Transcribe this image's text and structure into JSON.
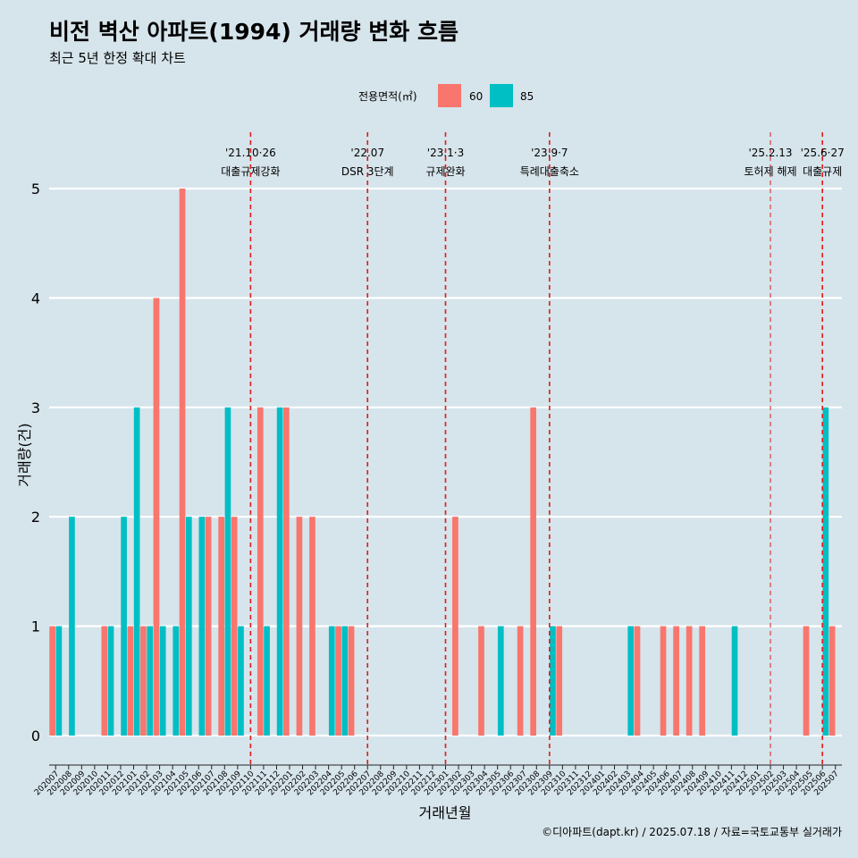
{
  "chart_data": {
    "type": "bar",
    "title": "비전 벽산 아파트(1994) 거래량 변화 흐름",
    "subtitle": "최근 5년 한정 확대 차트",
    "xlabel": "거래년월",
    "ylabel": "거래량(건)",
    "ylim": [
      0,
      5
    ],
    "yticks": [
      "0",
      "1",
      "2",
      "3",
      "4",
      "5"
    ],
    "legend": {
      "title": "전용면적(㎡)",
      "placement": "top"
    },
    "categories": [
      "202007",
      "202008",
      "202009",
      "202010",
      "202011",
      "202012",
      "202101",
      "202102",
      "202103",
      "202104",
      "202105",
      "202106",
      "202107",
      "202108",
      "202109",
      "202110",
      "202111",
      "202112",
      "202201",
      "202202",
      "202203",
      "202204",
      "202205",
      "202206",
      "202207",
      "202208",
      "202209",
      "202210",
      "202211",
      "202212",
      "202301",
      "202302",
      "202303",
      "202304",
      "202305",
      "202306",
      "202307",
      "202308",
      "202309",
      "202310",
      "202311",
      "202312",
      "202401",
      "202402",
      "202403",
      "202404",
      "202405",
      "202406",
      "202407",
      "202408",
      "202409",
      "202410",
      "202411",
      "202412",
      "202501",
      "202502",
      "202503",
      "202504",
      "202505",
      "202506",
      "202507"
    ],
    "series": [
      {
        "name": "60",
        "color": "#f8766d",
        "values": [
          1,
          0,
          0,
          0,
          1,
          0,
          1,
          1,
          4,
          0,
          5,
          0,
          2,
          2,
          2,
          0,
          3,
          0,
          3,
          2,
          2,
          0,
          1,
          1,
          0,
          0,
          0,
          0,
          0,
          0,
          0,
          2,
          0,
          1,
          0,
          0,
          1,
          3,
          0,
          1,
          0,
          0,
          0,
          0,
          0,
          1,
          0,
          1,
          1,
          1,
          1,
          0,
          0,
          0,
          0,
          0,
          0,
          0,
          1,
          0,
          1
        ]
      },
      {
        "name": "85",
        "color": "#00bfc4",
        "values": [
          1,
          2,
          0,
          0,
          1,
          2,
          3,
          1,
          1,
          1,
          2,
          2,
          0,
          3,
          1,
          0,
          1,
          3,
          0,
          0,
          0,
          1,
          1,
          0,
          0,
          0,
          0,
          0,
          0,
          0,
          0,
          0,
          0,
          0,
          1,
          0,
          0,
          0,
          1,
          0,
          0,
          0,
          0,
          0,
          1,
          0,
          0,
          0,
          0,
          0,
          0,
          0,
          1,
          0,
          0,
          0,
          0,
          0,
          0,
          3,
          0
        ]
      }
    ],
    "events": [
      {
        "date": "202110",
        "date_label": "'21.10·26",
        "label": "대출규제강화",
        "style": "dashed"
      },
      {
        "date": "202207",
        "date_label": "'22.07",
        "label": "DSR 3단계",
        "style": "dashed"
      },
      {
        "date": "202301",
        "date_label": "'23.1·3",
        "label": "규제완화",
        "style": "dashed"
      },
      {
        "date": "202309",
        "date_label": "'23.9·7",
        "label": "특례대출축소",
        "style": "dashed"
      },
      {
        "date": "202502",
        "date_label": "'25.2.13",
        "label": "토허제 해제",
        "style": "thin"
      },
      {
        "date": "202506",
        "date_label": "'25.6·27",
        "label": "대출규제",
        "style": "dashed"
      }
    ]
  },
  "caption": "©디아파트(dapt.kr) / 2025.07.18 / 자료=국토교통부 실거래가"
}
